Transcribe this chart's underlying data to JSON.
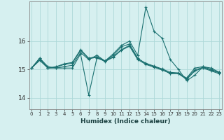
{
  "xlabel": "Humidex (Indice chaleur)",
  "ylabel": "",
  "background_color": "#d6f0f0",
  "grid_color": "#add8d8",
  "line_color": "#1a7070",
  "x_ticks": [
    0,
    1,
    2,
    3,
    4,
    5,
    6,
    7,
    8,
    9,
    10,
    11,
    12,
    13,
    14,
    15,
    16,
    17,
    18,
    19,
    20,
    21,
    22,
    23
  ],
  "y_ticks": [
    14,
    15,
    16
  ],
  "ylim": [
    13.6,
    17.4
  ],
  "xlim": [
    -0.3,
    23.3
  ],
  "series": [
    [
      15.05,
      15.4,
      15.1,
      15.05,
      15.05,
      15.05,
      15.55,
      14.1,
      15.4,
      15.3,
      15.55,
      15.85,
      16.0,
      15.5,
      17.2,
      16.35,
      16.1,
      15.35,
      15.0,
      14.6,
      14.8,
      15.1,
      15.05,
      14.9
    ],
    [
      15.05,
      15.4,
      15.05,
      15.05,
      15.1,
      15.15,
      15.6,
      15.35,
      15.5,
      15.3,
      15.5,
      15.8,
      15.9,
      15.4,
      15.2,
      15.1,
      15.0,
      14.85,
      14.85,
      14.7,
      15.05,
      15.1,
      15.0,
      14.9
    ],
    [
      15.05,
      15.35,
      15.05,
      15.1,
      15.2,
      15.25,
      15.7,
      15.4,
      15.45,
      15.3,
      15.45,
      15.7,
      15.85,
      15.38,
      15.22,
      15.12,
      15.02,
      14.9,
      14.88,
      14.68,
      14.98,
      15.08,
      14.98,
      14.88
    ],
    [
      15.05,
      15.32,
      15.05,
      15.08,
      15.18,
      15.22,
      15.68,
      15.38,
      15.43,
      15.28,
      15.43,
      15.68,
      15.82,
      15.35,
      15.18,
      15.08,
      14.98,
      14.87,
      14.85,
      14.65,
      14.95,
      15.05,
      14.95,
      14.85
    ]
  ]
}
